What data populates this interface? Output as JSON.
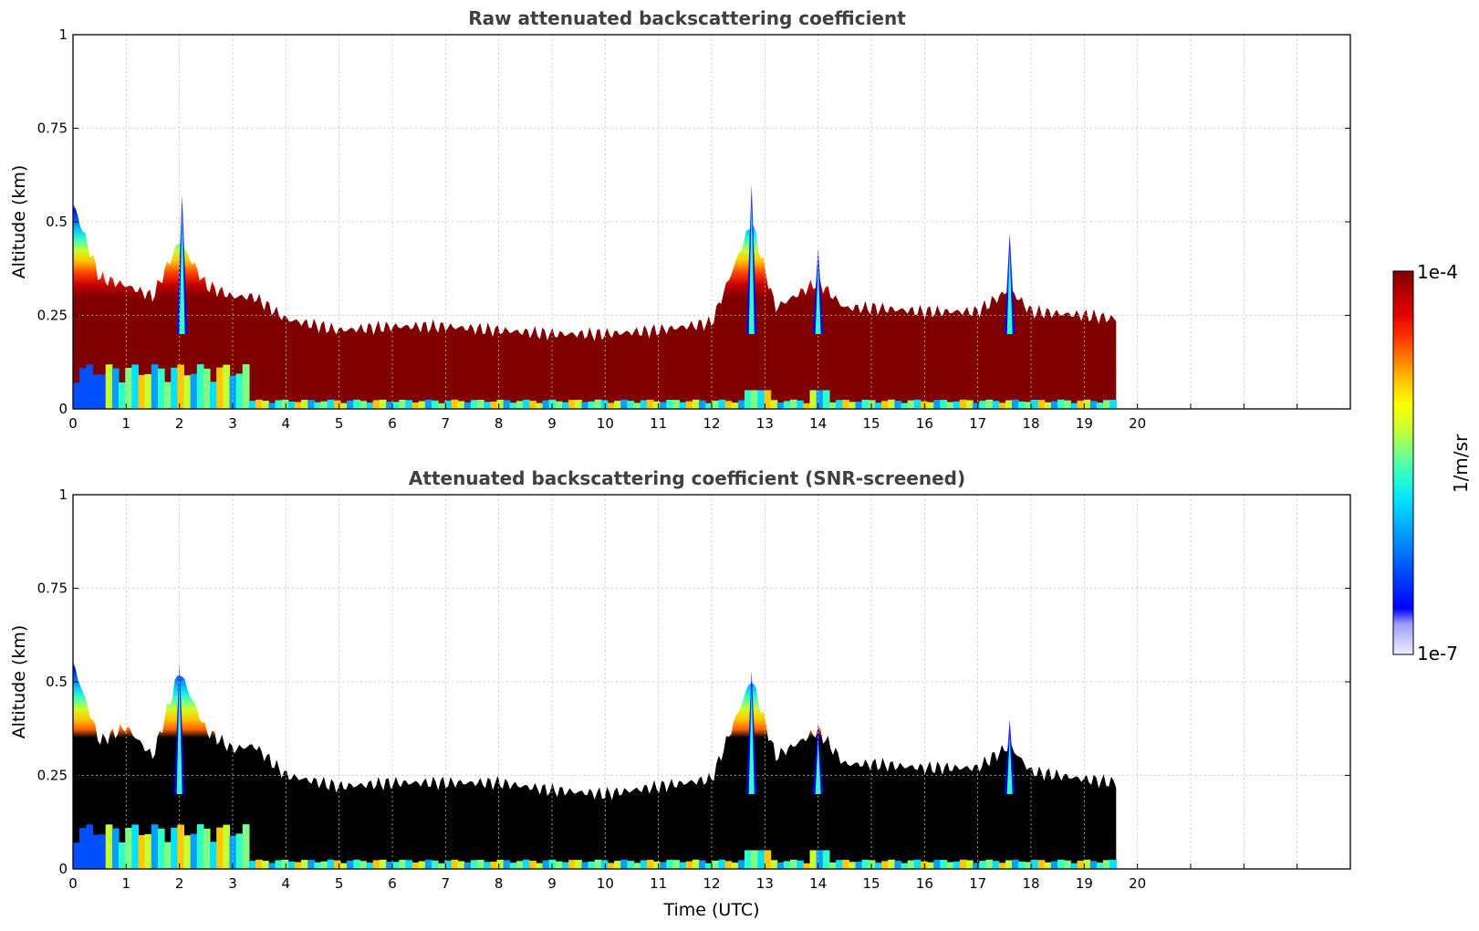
{
  "chart_data": [
    {
      "type": "heatmap",
      "title": "Raw attenuated backscattering coefficient",
      "xlabel": "",
      "ylabel": "Altitude (km)",
      "xlim": [
        0,
        24
      ],
      "ylim": [
        0,
        1
      ],
      "x_ticks": [
        "0",
        "1",
        "2",
        "3",
        "4",
        "5",
        "6",
        "7",
        "8",
        "9",
        "10",
        "11",
        "12",
        "13",
        "14",
        "15",
        "16",
        "17",
        "18",
        "19",
        "20"
      ],
      "y_ticks": [
        "0",
        "0.25",
        "0.5",
        "0.75",
        "1"
      ],
      "data_end_hour": 19.6,
      "screened": false,
      "layer_top_km": [
        [
          0,
          0.55
        ],
        [
          0.5,
          0.35
        ],
        [
          1,
          0.33
        ],
        [
          1.5,
          0.3
        ],
        [
          2,
          0.45
        ],
        [
          2.5,
          0.33
        ],
        [
          3,
          0.3
        ],
        [
          3.4,
          0.3
        ],
        [
          4,
          0.24
        ],
        [
          5,
          0.21
        ],
        [
          6,
          0.22
        ],
        [
          7,
          0.22
        ],
        [
          8,
          0.21
        ],
        [
          9,
          0.2
        ],
        [
          10,
          0.2
        ],
        [
          11,
          0.21
        ],
        [
          12,
          0.23
        ],
        [
          12.75,
          0.5
        ],
        [
          13.2,
          0.27
        ],
        [
          14,
          0.34
        ],
        [
          14.5,
          0.27
        ],
        [
          15,
          0.27
        ],
        [
          16,
          0.26
        ],
        [
          17,
          0.26
        ],
        [
          17.6,
          0.32
        ],
        [
          18,
          0.26
        ],
        [
          19,
          0.25
        ],
        [
          19.6,
          0.24
        ]
      ],
      "peaks": [
        {
          "x": 12.75,
          "top_km": 0.6
        },
        {
          "x": 2.05,
          "top_km": 0.57
        },
        {
          "x": 14.0,
          "top_km": 0.43
        },
        {
          "x": 17.6,
          "top_km": 0.47
        }
      ]
    },
    {
      "type": "heatmap",
      "title": "Attenuated backscattering coefficient (SNR-screened)",
      "xlabel": "Time (UTC)",
      "ylabel": "Altitude (km)",
      "xlim": [
        0,
        24
      ],
      "ylim": [
        0,
        1
      ],
      "x_ticks": [
        "0",
        "1",
        "2",
        "3",
        "4",
        "5",
        "6",
        "7",
        "8",
        "9",
        "10",
        "11",
        "12",
        "13",
        "14",
        "15",
        "16",
        "17",
        "18",
        "19",
        "20"
      ],
      "y_ticks": [
        "0",
        "0.25",
        "0.5",
        "0.75",
        "1"
      ],
      "data_end_hour": 19.6,
      "screened": true,
      "layer_top_km": [
        [
          0,
          0.55
        ],
        [
          0.5,
          0.34
        ],
        [
          1,
          0.38
        ],
        [
          1.5,
          0.3
        ],
        [
          2,
          0.53
        ],
        [
          2.5,
          0.37
        ],
        [
          3,
          0.32
        ],
        [
          3.4,
          0.33
        ],
        [
          4,
          0.25
        ],
        [
          5,
          0.22
        ],
        [
          6,
          0.23
        ],
        [
          7,
          0.23
        ],
        [
          8,
          0.23
        ],
        [
          9,
          0.21
        ],
        [
          10,
          0.2
        ],
        [
          11,
          0.22
        ],
        [
          12,
          0.24
        ],
        [
          12.75,
          0.51
        ],
        [
          13.2,
          0.3
        ],
        [
          14,
          0.37
        ],
        [
          14.5,
          0.28
        ],
        [
          15,
          0.28
        ],
        [
          16,
          0.27
        ],
        [
          17,
          0.27
        ],
        [
          17.6,
          0.33
        ],
        [
          18,
          0.26
        ],
        [
          19,
          0.24
        ],
        [
          19.6,
          0.23
        ]
      ],
      "peaks": [
        {
          "x": 12.75,
          "top_km": 0.53
        },
        {
          "x": 2.0,
          "top_km": 0.55
        },
        {
          "x": 14.0,
          "top_km": 0.39
        },
        {
          "x": 17.6,
          "top_km": 0.4
        }
      ]
    }
  ],
  "colorbar": {
    "max_label": "1e-4",
    "min_label": "1e-7",
    "units_label": "1/m/sr",
    "colors": [
      "#ececff",
      "#c8c8ff",
      "#9b9bff",
      "#0000ff",
      "#0050ff",
      "#00a0ff",
      "#00e0ff",
      "#30ffc8",
      "#80ff80",
      "#c8ff30",
      "#ffff00",
      "#ffc800",
      "#ff8000",
      "#ff3000",
      "#e00000",
      "#b00000",
      "#800000"
    ]
  }
}
